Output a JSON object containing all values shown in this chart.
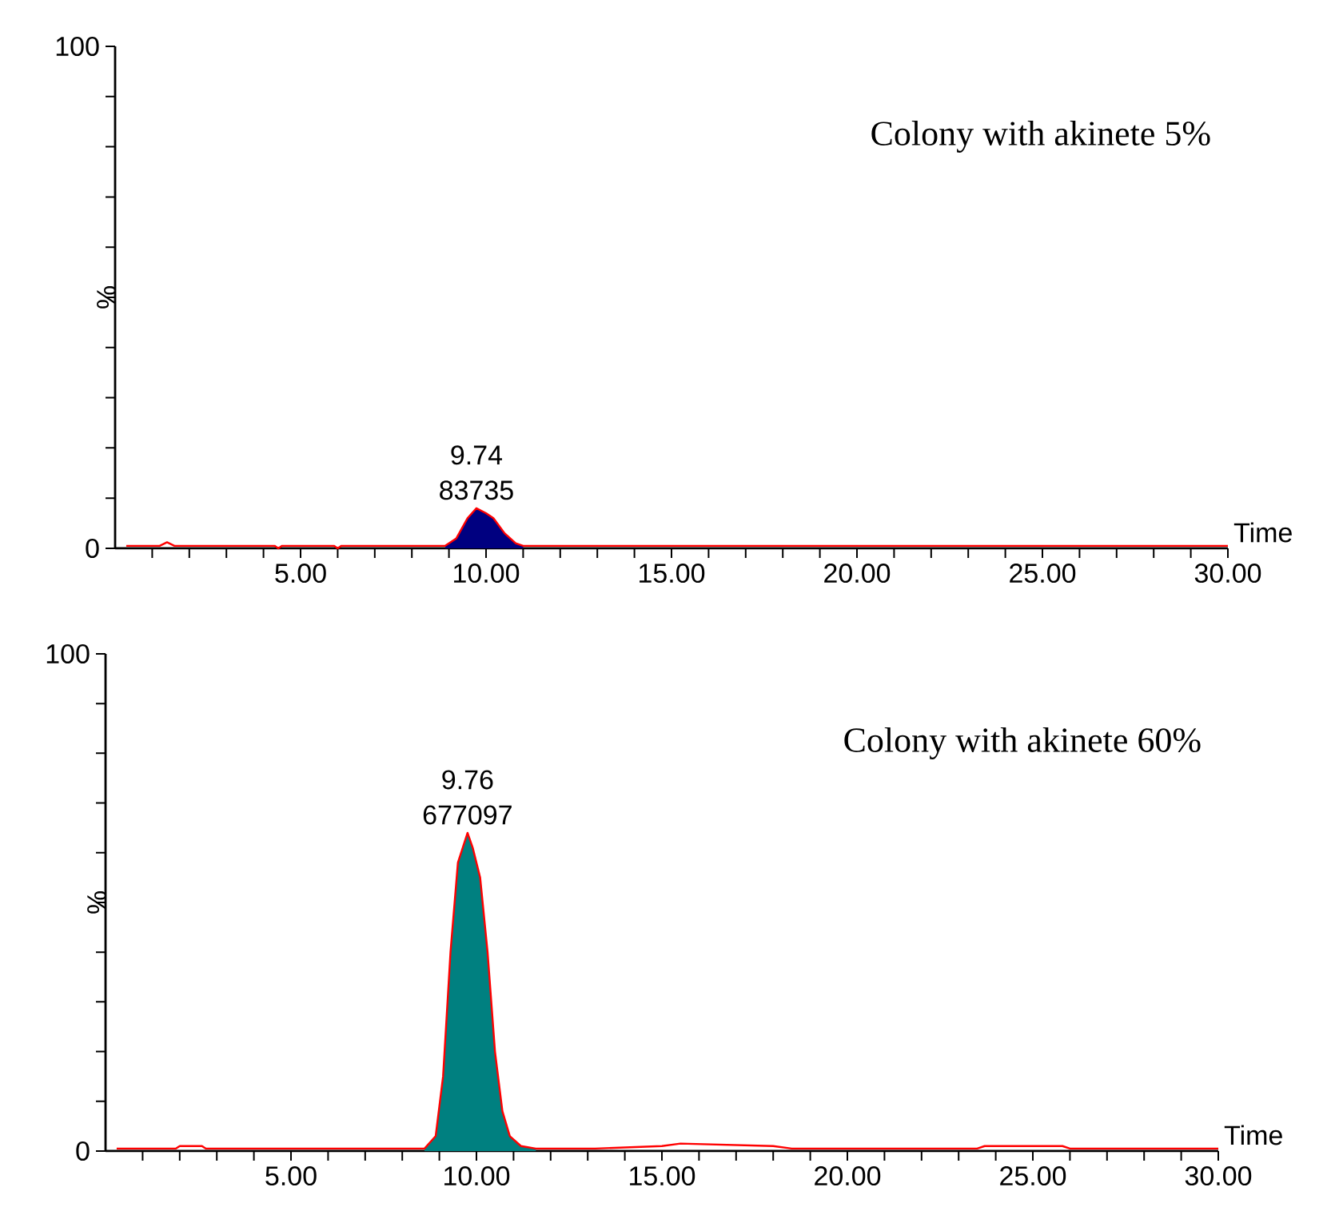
{
  "chart_data": [
    {
      "type": "line",
      "title": "Colony with akinete 5%",
      "xlabel": "Time",
      "ylabel": "%",
      "xlim": [
        0,
        30
      ],
      "ylim": [
        0,
        100
      ],
      "xticks": [
        {
          "value": 1,
          "label": null
        },
        {
          "value": 2,
          "label": null
        },
        {
          "value": 3,
          "label": null
        },
        {
          "value": 4,
          "label": null
        },
        {
          "value": 5,
          "label": "5.00"
        },
        {
          "value": 6,
          "label": null
        },
        {
          "value": 7,
          "label": null
        },
        {
          "value": 8,
          "label": null
        },
        {
          "value": 9,
          "label": null
        },
        {
          "value": 10,
          "label": "10.00"
        },
        {
          "value": 11,
          "label": null
        },
        {
          "value": 12,
          "label": null
        },
        {
          "value": 13,
          "label": null
        },
        {
          "value": 14,
          "label": null
        },
        {
          "value": 15,
          "label": "15.00"
        },
        {
          "value": 16,
          "label": null
        },
        {
          "value": 17,
          "label": null
        },
        {
          "value": 18,
          "label": null
        },
        {
          "value": 19,
          "label": null
        },
        {
          "value": 20,
          "label": "20.00"
        },
        {
          "value": 21,
          "label": null
        },
        {
          "value": 22,
          "label": null
        },
        {
          "value": 23,
          "label": null
        },
        {
          "value": 24,
          "label": null
        },
        {
          "value": 25,
          "label": "25.00"
        },
        {
          "value": 26,
          "label": null
        },
        {
          "value": 27,
          "label": null
        },
        {
          "value": 28,
          "label": null
        },
        {
          "value": 29,
          "label": null
        },
        {
          "value": 30,
          "label": "30.00"
        }
      ],
      "yticks": [
        0,
        {
          "value": 10,
          "label": null
        },
        {
          "value": 20,
          "label": null
        },
        {
          "value": 30,
          "label": null
        },
        {
          "value": 40,
          "label": null
        },
        {
          "value": 50,
          "label": null
        },
        {
          "value": 60,
          "label": null
        },
        {
          "value": 70,
          "label": null
        },
        {
          "value": 80,
          "label": null
        },
        {
          "value": 90,
          "label": null
        },
        100
      ],
      "series": [
        {
          "type": "area",
          "color": "#000080",
          "x": [
            8.9,
            9.2,
            9.5,
            9.74,
            10.0,
            10.2,
            10.5,
            10.8,
            11.0
          ],
          "values": [
            0.5,
            2,
            6,
            8,
            7,
            6,
            3,
            1,
            0.5
          ]
        },
        {
          "type": "line",
          "color": "#ff0000",
          "x": [
            0.3,
            1.2,
            1.4,
            1.6,
            4.3,
            4.4,
            4.5,
            5.9,
            6.0,
            6.1,
            8.9,
            9.2,
            9.5,
            9.74,
            10.0,
            10.2,
            10.5,
            10.8,
            11.0,
            30
          ],
          "values": [
            0.5,
            0.5,
            1.2,
            0.5,
            0.5,
            0,
            0.5,
            0.5,
            0,
            0.5,
            0.5,
            2,
            6,
            8,
            7,
            6,
            3,
            1,
            0.5,
            0.5
          ]
        }
      ],
      "annotations": [
        "9.74",
        "83735"
      ]
    },
    {
      "type": "line",
      "title": "Colony with akinete 60%",
      "xlabel": "Time",
      "ylabel": "%",
      "xlim": [
        0,
        30
      ],
      "ylim": [
        0,
        100
      ],
      "xticks": [
        {
          "value": 1,
          "label": null
        },
        {
          "value": 2,
          "label": null
        },
        {
          "value": 3,
          "label": null
        },
        {
          "value": 4,
          "label": null
        },
        {
          "value": 5,
          "label": "5.00"
        },
        {
          "value": 6,
          "label": null
        },
        {
          "value": 7,
          "label": null
        },
        {
          "value": 8,
          "label": null
        },
        {
          "value": 9,
          "label": null
        },
        {
          "value": 10,
          "label": "10.00"
        },
        {
          "value": 11,
          "label": null
        },
        {
          "value": 12,
          "label": null
        },
        {
          "value": 13,
          "label": null
        },
        {
          "value": 14,
          "label": null
        },
        {
          "value": 15,
          "label": "15.00"
        },
        {
          "value": 16,
          "label": null
        },
        {
          "value": 17,
          "label": null
        },
        {
          "value": 18,
          "label": null
        },
        {
          "value": 19,
          "label": null
        },
        {
          "value": 20,
          "label": "20.00"
        },
        {
          "value": 21,
          "label": null
        },
        {
          "value": 22,
          "label": null
        },
        {
          "value": 23,
          "label": null
        },
        {
          "value": 24,
          "label": null
        },
        {
          "value": 25,
          "label": "25.00"
        },
        {
          "value": 26,
          "label": null
        },
        {
          "value": 27,
          "label": null
        },
        {
          "value": 28,
          "label": null
        },
        {
          "value": 29,
          "label": null
        },
        {
          "value": 30,
          "label": "30.00"
        }
      ],
      "yticks": [
        0,
        {
          "value": 10,
          "label": null
        },
        {
          "value": 20,
          "label": null
        },
        {
          "value": 30,
          "label": null
        },
        {
          "value": 40,
          "label": null
        },
        {
          "value": 50,
          "label": null
        },
        {
          "value": 60,
          "label": null
        },
        {
          "value": 70,
          "label": null
        },
        {
          "value": 80,
          "label": null
        },
        {
          "value": 90,
          "label": null
        },
        100
      ],
      "series": [
        {
          "type": "area",
          "color": "#008080",
          "x": [
            8.6,
            8.9,
            9.1,
            9.3,
            9.5,
            9.76,
            9.9,
            10.1,
            10.3,
            10.5,
            10.7,
            10.9,
            11.2,
            11.6
          ],
          "values": [
            0.5,
            3,
            15,
            40,
            58,
            64,
            61,
            55,
            40,
            20,
            8,
            3,
            1,
            0.5
          ]
        },
        {
          "type": "line",
          "color": "#ff0000",
          "x": [
            0.3,
            1.9,
            2.0,
            2.6,
            2.7,
            8.6,
            8.9,
            9.1,
            9.3,
            9.5,
            9.76,
            9.9,
            10.1,
            10.3,
            10.5,
            10.7,
            10.9,
            11.2,
            11.6,
            13.2,
            15.0,
            15.5,
            18.0,
            18.5,
            23.5,
            23.7,
            25.8,
            26.0,
            30
          ],
          "values": [
            0.5,
            0.5,
            1,
            1,
            0.5,
            0.5,
            3,
            15,
            40,
            58,
            64,
            61,
            55,
            40,
            20,
            8,
            3,
            1,
            0.5,
            0.5,
            1,
            1.5,
            1,
            0.5,
            0.5,
            1,
            1,
            0.5,
            0.5
          ]
        }
      ],
      "annotations": [
        "9.76",
        "677097"
      ]
    }
  ]
}
